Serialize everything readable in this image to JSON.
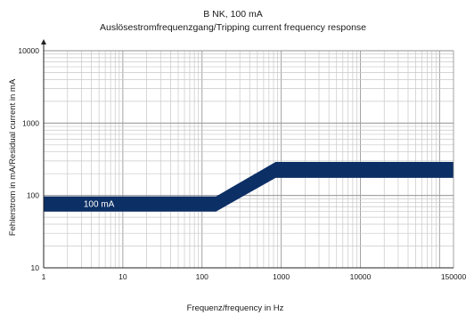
{
  "chart_data": {
    "type": "area",
    "title": "B NK, 100 mA",
    "subtitle": "Auslösestromfrequenzgang/Tripping current frequency response",
    "xlabel": "Frequenz/frequency in Hz",
    "ylabel": "Fehlerstrom in mA/Residual current in mA",
    "xscale": "log",
    "yscale": "log",
    "xlim": [
      1,
      150000
    ],
    "ylim": [
      10,
      10000
    ],
    "grid": true,
    "x_ticks": [
      {
        "value": 1,
        "label": "1"
      },
      {
        "value": 10,
        "label": "10"
      },
      {
        "value": 100,
        "label": "100"
      },
      {
        "value": 1000,
        "label": "1000"
      },
      {
        "value": 10000,
        "label": "10000"
      },
      {
        "value": 150000,
        "label": "150000"
      }
    ],
    "y_ticks": [
      {
        "value": 10,
        "label": "10"
      },
      {
        "value": 100,
        "label": "100"
      },
      {
        "value": 1000,
        "label": "1000"
      },
      {
        "value": 10000,
        "label": "10000"
      }
    ],
    "band": {
      "label": "100 mA",
      "label_position": {
        "x": 5,
        "y": 77
      },
      "color": "#0c2f66",
      "x": [
        1,
        100,
        150,
        850,
        150000
      ],
      "upper": [
        97,
        97,
        97,
        290,
        290
      ],
      "lower": [
        60,
        60,
        60,
        175,
        175
      ]
    }
  }
}
